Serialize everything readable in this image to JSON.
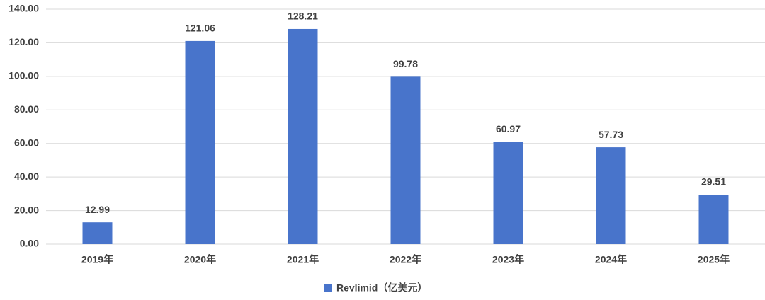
{
  "chart_data": {
    "type": "bar",
    "categories": [
      "2019年",
      "2020年",
      "2021年",
      "2022年",
      "2023年",
      "2024年",
      "2025年"
    ],
    "series": [
      {
        "name": "Revlimid（亿美元）",
        "color": "#4874cb",
        "values": [
          12.99,
          121.06,
          128.21,
          99.78,
          60.97,
          57.73,
          29.51
        ]
      }
    ],
    "ylim": [
      0,
      140
    ],
    "yticks": [
      {
        "value": 0,
        "label": "0.00"
      },
      {
        "value": 20,
        "label": "20.00"
      },
      {
        "value": 40,
        "label": "40.00"
      },
      {
        "value": 60,
        "label": "60.00"
      },
      {
        "value": 80,
        "label": "80.00"
      },
      {
        "value": 100,
        "label": "100.00"
      },
      {
        "value": 120,
        "label": "120.00"
      },
      {
        "value": 140,
        "label": "140.00"
      }
    ],
    "grid": true,
    "legend": "bottom"
  }
}
